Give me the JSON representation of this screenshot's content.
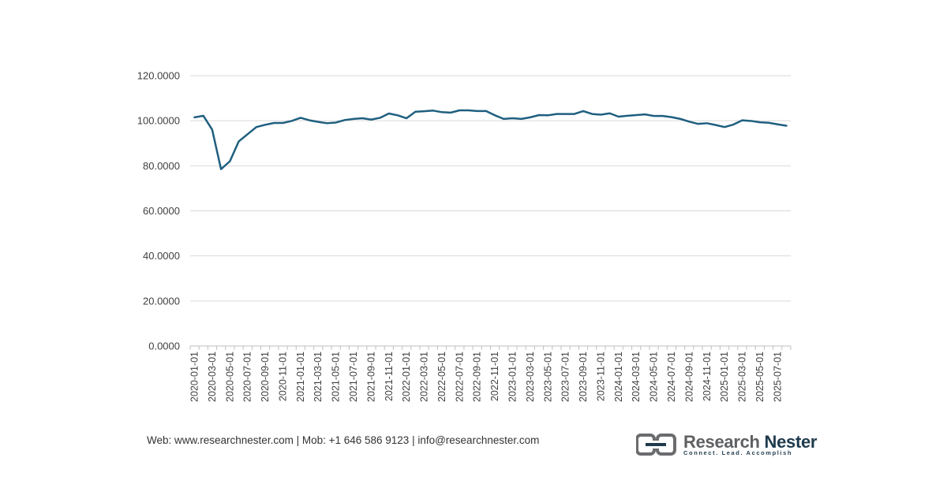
{
  "chart_data": {
    "type": "line",
    "title": "",
    "xlabel": "",
    "ylabel": "",
    "ylim": [
      0,
      120
    ],
    "yticks": [
      "0.0000",
      "20.0000",
      "40.0000",
      "60.0000",
      "80.0000",
      "100.0000",
      "120.0000"
    ],
    "grid": true,
    "legend": "none",
    "line_color": "#1f5f7f",
    "x_tick_labels": [
      "2020-01-01",
      "2020-03-01",
      "2020-05-01",
      "2020-07-01",
      "2020-09-01",
      "2020-11-01",
      "2021-01-01",
      "2021-03-01",
      "2021-05-01",
      "2021-07-01",
      "2021-09-01",
      "2021-11-01",
      "2022-01-01",
      "2022-03-01",
      "2022-05-01",
      "2022-07-01",
      "2022-09-01",
      "2022-11-01",
      "2023-01-01",
      "2023-03-01",
      "2023-05-01",
      "2023-07-01",
      "2023-09-01",
      "2023-11-01",
      "2024-01-01",
      "2024-03-01",
      "2024-05-01",
      "2024-07-01",
      "2024-09-01",
      "2024-11-01",
      "2025-01-01",
      "2025-03-01",
      "2025-05-01",
      "2025-07-01"
    ],
    "series": [
      {
        "values": [
          101.5,
          102.2,
          96.0,
          78.5,
          82.0,
          90.8,
          94.0,
          97.2,
          98.2,
          99.0,
          99.0,
          99.9,
          101.3,
          100.2,
          99.5,
          98.9,
          99.2,
          100.3,
          100.8,
          101.1,
          100.5,
          101.3,
          103.2,
          102.4,
          101.1,
          104.0,
          104.2,
          104.5,
          103.8,
          103.6,
          104.6,
          104.6,
          104.3,
          104.3,
          102.4,
          100.8,
          101.1,
          100.8,
          101.5,
          102.5,
          102.4,
          103.0,
          103.0,
          103.0,
          104.3,
          103.0,
          102.7,
          103.3,
          101.8,
          102.2,
          102.5,
          102.8,
          102.1,
          102.1,
          101.6,
          100.8,
          99.6,
          98.6,
          98.9,
          98.1,
          97.2,
          98.3,
          100.2,
          99.9,
          99.3,
          99.1,
          98.4,
          97.8
        ]
      }
    ]
  },
  "footer": {
    "contact": "Web: www.researchnester.com | Mob: +1 646 586 9123 | info@researchnester.com"
  },
  "logo": {
    "word1": "Research",
    "word2": "Nester",
    "tagline": "Connect. Lead. Accomplish"
  }
}
